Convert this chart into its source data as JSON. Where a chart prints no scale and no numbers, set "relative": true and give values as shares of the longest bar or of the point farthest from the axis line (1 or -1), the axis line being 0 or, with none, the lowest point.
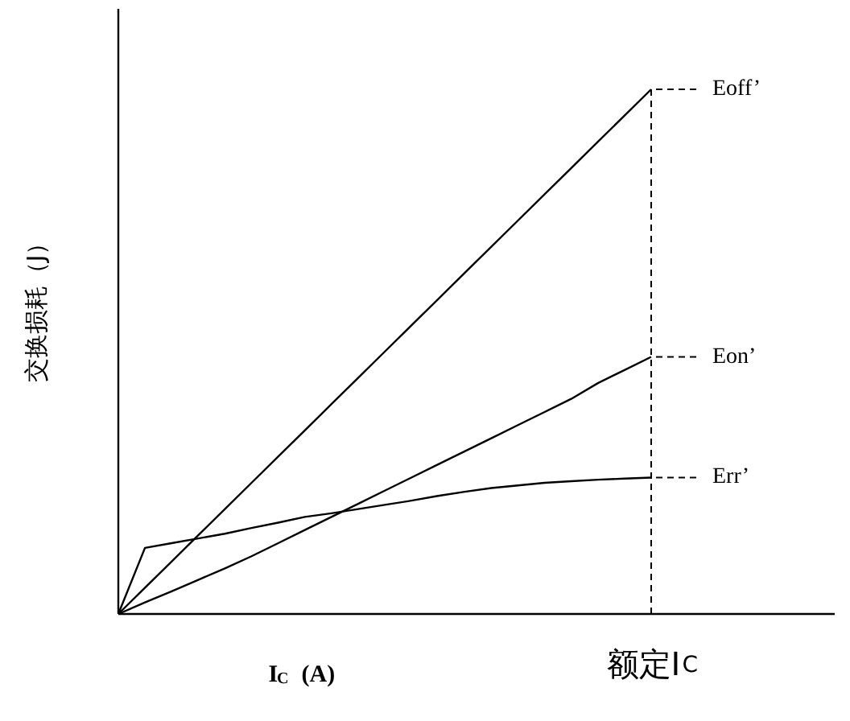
{
  "chart_data": {
    "type": "line",
    "relative": true,
    "ylabel": "交换损耗（J）",
    "xlabel": "I$_{C}$  (A)",
    "legend": "right",
    "categories": [
      null,
      null,
      null,
      null,
      null,
      null,
      null,
      null,
      null,
      null,
      null,
      null,
      null,
      null,
      null,
      null,
      null,
      null,
      null,
      null,
      null,
      null,
      null,
      null,
      null,
      null,
      null
    ],
    "ref_lines": [
      {
        "axis": "x",
        "label": "额定I$_{C}$",
        "line_style": "dashed",
        "color": "#000000"
      }
    ],
    "series": [
      {
        "name": "Eoff’",
        "color": "#000000",
        "values": [
          0,
          0.05,
          0.1,
          0.15,
          0.2,
          0.25,
          0.3,
          0.35,
          0.4,
          0.45,
          0.5,
          0.55,
          0.6,
          0.65,
          0.7,
          0.75,
          0.8,
          0.85,
          0.9,
          0.95,
          1,
          null,
          null,
          null,
          null,
          null,
          null
        ]
      },
      {
        "name": "Eon’",
        "color": "#000000",
        "values": [
          0,
          0.022,
          0.043,
          0.065,
          0.087,
          0.11,
          0.135,
          0.16,
          0.185,
          0.21,
          0.235,
          0.26,
          0.285,
          0.31,
          0.335,
          0.36,
          0.385,
          0.41,
          0.44,
          0.465,
          0.49,
          null,
          null,
          null,
          null,
          null,
          null
        ]
      },
      {
        "name": "Err’",
        "color": "#000000",
        "values": [
          0,
          0.126,
          0.135,
          0.144,
          0.153,
          0.164,
          0.174,
          0.185,
          0.192,
          0.2,
          0.208,
          0.216,
          0.225,
          0.233,
          0.24,
          0.245,
          0.25,
          0.253,
          0.256,
          0.258,
          0.26,
          null,
          null,
          null,
          null,
          null,
          null
        ]
      }
    ]
  }
}
